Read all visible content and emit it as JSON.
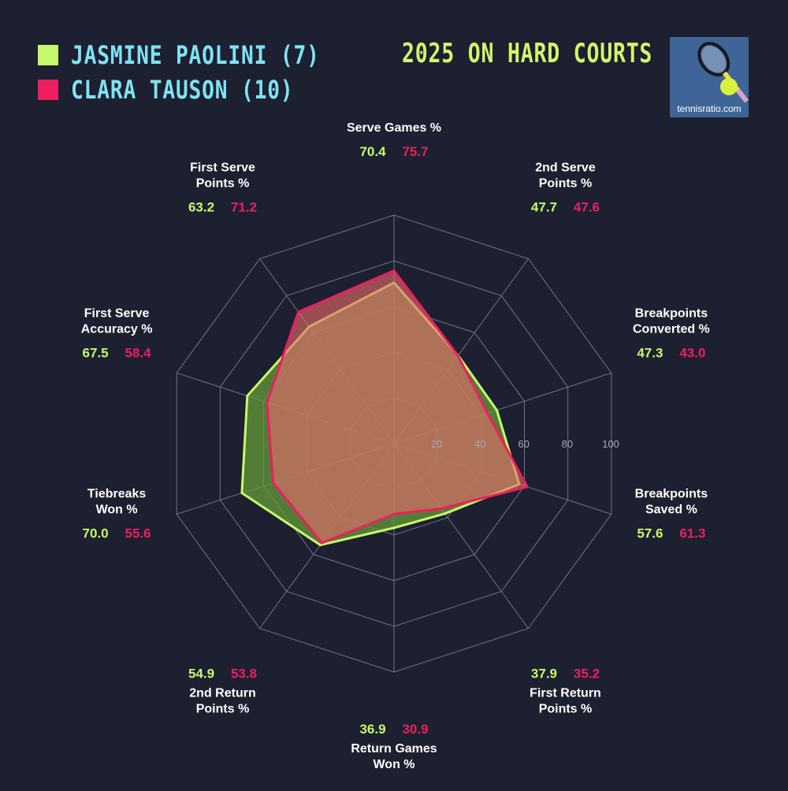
{
  "legend": [
    {
      "label": "JASMINE PAOLINI (7)",
      "color": "#c6fa6a"
    },
    {
      "label": "CLARA TAUSON (10)",
      "color": "#ec1f60"
    }
  ],
  "title": "2025 ON HARD COURTS",
  "logo": {
    "text": "tennisratio.com"
  },
  "chart_data": {
    "type": "radar",
    "title": "2025 ON HARD COURTS",
    "range": [
      0,
      100
    ],
    "ticks": [
      "20",
      "40",
      "60",
      "80",
      "100"
    ],
    "tick_values": [
      20,
      40,
      60,
      80,
      100
    ],
    "grid": true,
    "legend_placement": "top-left",
    "axes": [
      {
        "label": [
          "Serve Games %"
        ]
      },
      {
        "label": [
          "2nd Serve",
          "Points %"
        ]
      },
      {
        "label": [
          "Breakpoints",
          "Converted %"
        ]
      },
      {
        "label": [
          "Breakpoints",
          "Saved %"
        ]
      },
      {
        "label": [
          "First Return",
          "Points %"
        ]
      },
      {
        "label": [
          "Return Games",
          "Won %"
        ]
      },
      {
        "label": [
          "2nd Return",
          "Points %"
        ]
      },
      {
        "label": [
          "Tiebreaks",
          "Won %"
        ]
      },
      {
        "label": [
          "First Serve",
          "Accuracy %"
        ]
      },
      {
        "label": [
          "First Serve",
          "Points %"
        ]
      }
    ],
    "series": [
      {
        "name": "JASMINE PAOLINI (7)",
        "color": "#c6fa6a",
        "fill": "#6aa03a",
        "values": [
          70.4,
          47.7,
          47.3,
          57.6,
          37.9,
          36.9,
          54.9,
          70.0,
          67.5,
          63.2
        ],
        "display": [
          "70.4",
          "47.7",
          "47.3",
          "57.6",
          "37.9",
          "36.9",
          "54.9",
          "70.0",
          "67.5",
          "63.2"
        ]
      },
      {
        "name": "CLARA TAUSON (10)",
        "color": "#ec1f60",
        "fill": "#e86a6a",
        "values": [
          75.7,
          47.6,
          43.0,
          61.3,
          35.2,
          30.9,
          53.8,
          55.6,
          58.4,
          71.2
        ],
        "display": [
          "75.7",
          "47.6",
          "43.0",
          "61.3",
          "35.2",
          "30.9",
          "53.8",
          "55.6",
          "58.4",
          "71.2"
        ]
      }
    ]
  }
}
